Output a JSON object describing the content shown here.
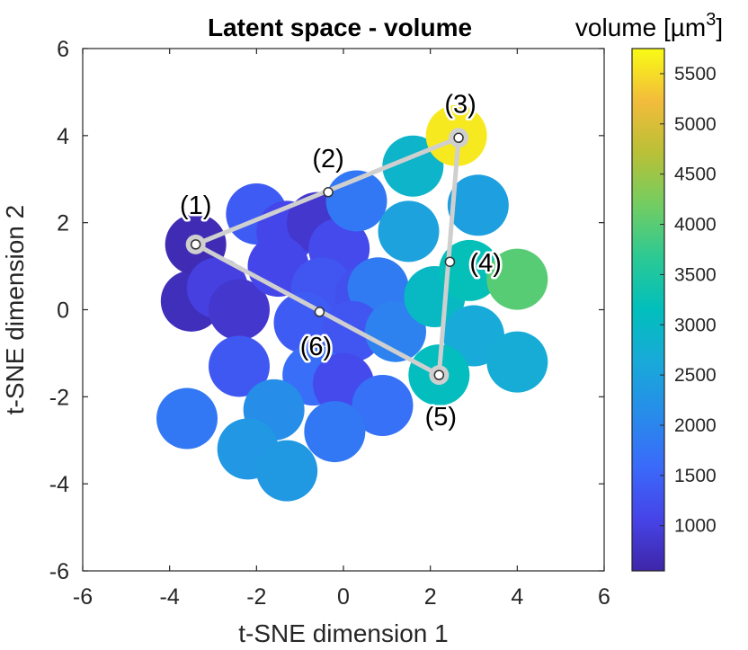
{
  "chart_data": {
    "type": "scatter",
    "title": "Latent space - volume",
    "xlabel": "t-SNE dimension 1",
    "ylabel": "t-SNE dimension 2",
    "xlim": [
      -6,
      6
    ],
    "ylim": [
      -6,
      6
    ],
    "xticks": [
      "-6",
      "-4",
      "-2",
      "0",
      "2",
      "4",
      "6"
    ],
    "yticks": [
      "-6",
      "-4",
      "-2",
      "0",
      "2",
      "4",
      "6"
    ],
    "grid": false,
    "colorbar": {
      "title": "volume [µm",
      "title_superscript": "3",
      "title_suffix": "]",
      "range": [
        550,
        5750
      ],
      "ticks": [
        "1000",
        "1500",
        "2000",
        "2500",
        "3000",
        "3500",
        "4000",
        "4500",
        "5000",
        "5500"
      ],
      "colormap": "parula"
    },
    "points": [
      {
        "x": -3.5,
        "y": 0.2,
        "volume": 700
      },
      {
        "x": -3.4,
        "y": 1.5,
        "volume": 650
      },
      {
        "x": -2.9,
        "y": 0.5,
        "volume": 1000
      },
      {
        "x": -2.4,
        "y": 0.0,
        "volume": 850
      },
      {
        "x": -2.0,
        "y": 2.2,
        "volume": 1400
      },
      {
        "x": -1.3,
        "y": 1.8,
        "volume": 1100
      },
      {
        "x": -0.6,
        "y": 2.0,
        "volume": 850
      },
      {
        "x": -1.5,
        "y": 1.0,
        "volume": 1100
      },
      {
        "x": -0.1,
        "y": 1.4,
        "volume": 1150
      },
      {
        "x": 0.3,
        "y": 2.5,
        "volume": 1800
      },
      {
        "x": -0.5,
        "y": 0.5,
        "volume": 1300
      },
      {
        "x": 0.5,
        "y": 0.3,
        "volume": 1250
      },
      {
        "x": 0.8,
        "y": 0.5,
        "volume": 1850
      },
      {
        "x": -0.9,
        "y": -0.3,
        "volume": 1400
      },
      {
        "x": 0.2,
        "y": -0.5,
        "volume": 1300
      },
      {
        "x": 1.2,
        "y": -0.5,
        "volume": 1950
      },
      {
        "x": -2.4,
        "y": -1.3,
        "volume": 1350
      },
      {
        "x": -0.7,
        "y": -1.5,
        "volume": 1650
      },
      {
        "x": 0.0,
        "y": -1.7,
        "volume": 1150
      },
      {
        "x": 0.9,
        "y": -2.2,
        "volume": 1700
      },
      {
        "x": -3.6,
        "y": -2.5,
        "volume": 1800
      },
      {
        "x": -1.6,
        "y": -2.3,
        "volume": 2150
      },
      {
        "x": -0.2,
        "y": -2.8,
        "volume": 1800
      },
      {
        "x": -2.2,
        "y": -3.2,
        "volume": 2300
      },
      {
        "x": -1.3,
        "y": -3.7,
        "volume": 2350
      },
      {
        "x": 1.6,
        "y": 3.3,
        "volume": 2900
      },
      {
        "x": 2.6,
        "y": 4.0,
        "volume": 5600
      },
      {
        "x": 3.1,
        "y": 2.4,
        "volume": 2450
      },
      {
        "x": 1.5,
        "y": 1.8,
        "volume": 2500
      },
      {
        "x": 2.1,
        "y": 0.3,
        "volume": 3000
      },
      {
        "x": 2.9,
        "y": 0.9,
        "volume": 3200
      },
      {
        "x": 4.0,
        "y": 0.7,
        "volume": 4000
      },
      {
        "x": 3.0,
        "y": -0.6,
        "volume": 2650
      },
      {
        "x": 4.0,
        "y": -1.2,
        "volume": 2700
      },
      {
        "x": 2.2,
        "y": -1.5,
        "volume": 3100
      }
    ],
    "path_nodes": [
      {
        "label": "(1)",
        "x": -3.4,
        "y": 1.5
      },
      {
        "label": "(2)",
        "x": -0.35,
        "y": 2.7
      },
      {
        "label": "(3)",
        "x": 2.65,
        "y": 3.95
      },
      {
        "label": "(4)",
        "x": 2.45,
        "y": 1.1
      },
      {
        "label": "(5)",
        "x": 2.2,
        "y": -1.5
      },
      {
        "label": "(6)",
        "x": -0.55,
        "y": -0.05
      }
    ],
    "path_segments": [
      {
        "from": "(1)",
        "to": "(3)"
      },
      {
        "from": "(3)",
        "to": "(5)"
      },
      {
        "from": "(5)",
        "to": "(1)"
      }
    ],
    "path_endpoints": [
      "(1)",
      "(3)",
      "(5)"
    ]
  }
}
